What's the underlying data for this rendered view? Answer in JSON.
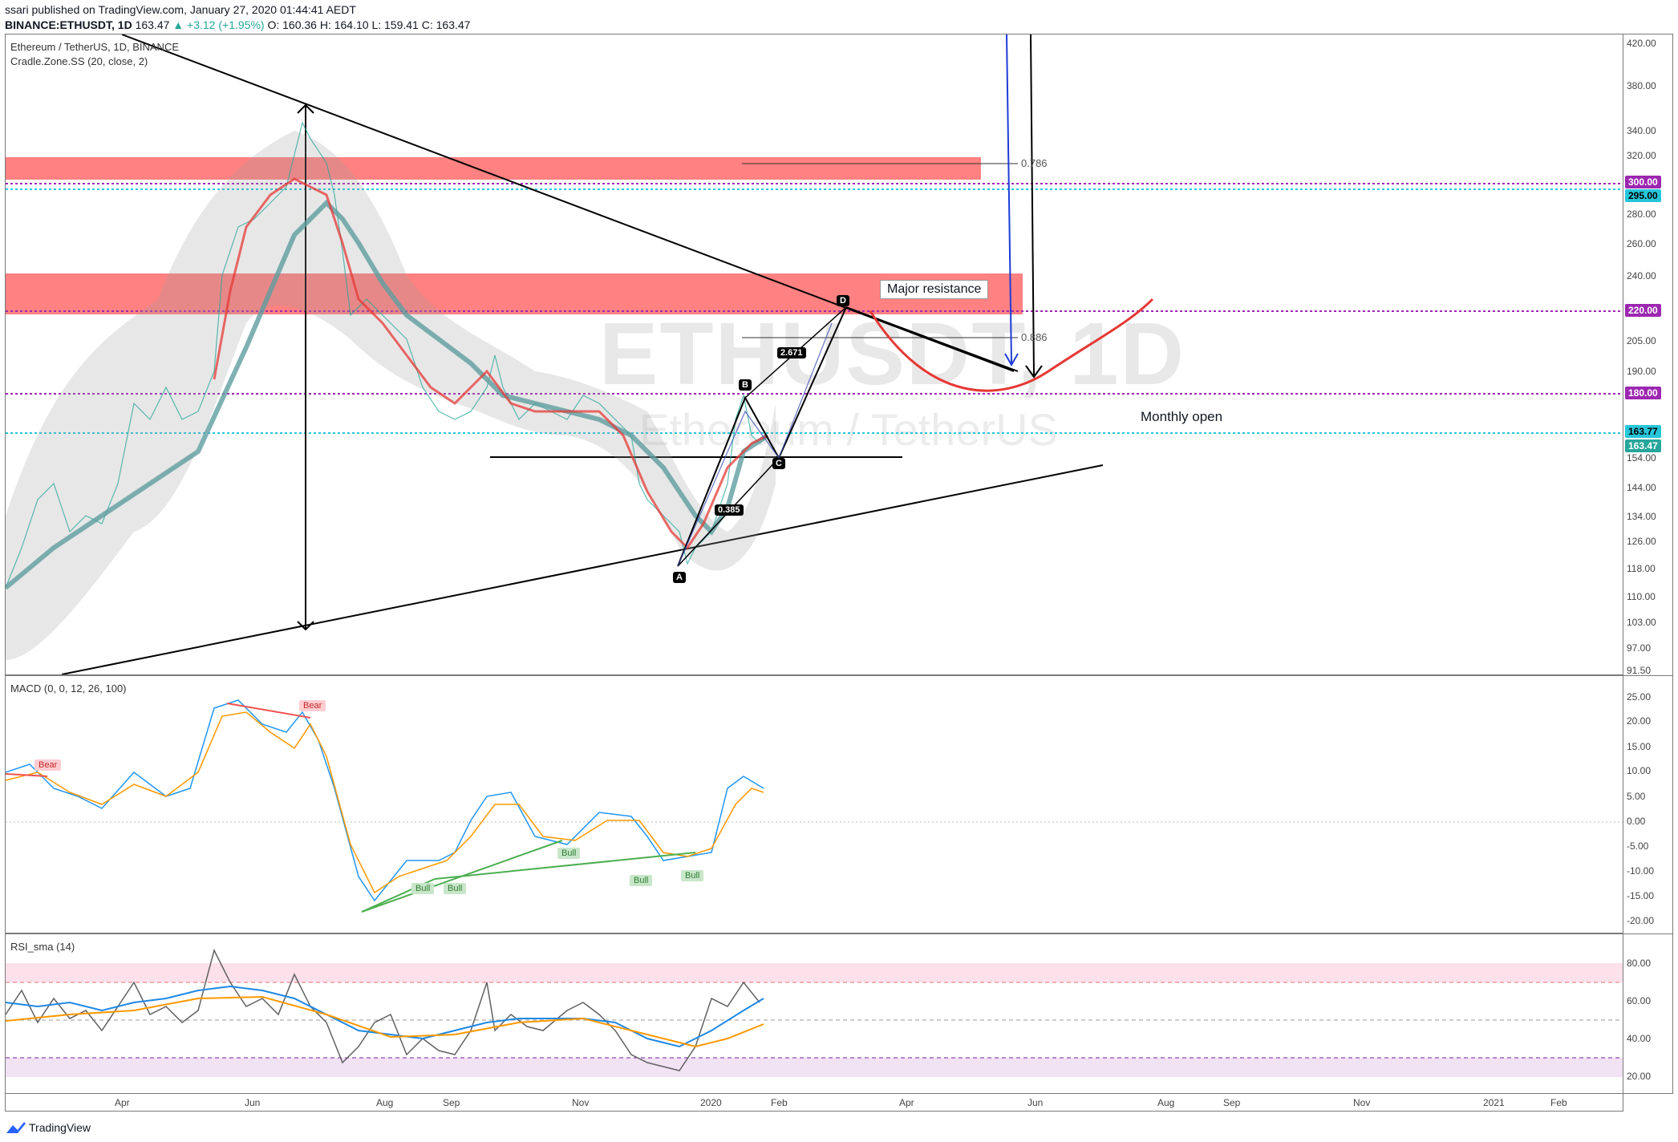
{
  "header": {
    "published": "ssari published on TradingView.com, January 27, 2020 01:44:41 AEDT",
    "symbol": "BINANCE:ETHUSDT, 1D",
    "last": "163.47",
    "change": "▲ +3.12 (+1.95%)",
    "open": "O: 160.36",
    "high": "H: 164.10",
    "low": "L: 159.41",
    "close": "C: 163.47"
  },
  "main_pane": {
    "title": "Ethereum / TetherUS, 1D, BINANCE",
    "study": "Cradle.Zone.SS (20, close, 2)",
    "watermark_symbol": "ETHUSDT, 1D",
    "watermark_name": "Ethereum / TetherUS",
    "price_ticks": [
      "420.00",
      "380.00",
      "340.00",
      "320.00",
      "300.00",
      "280.00",
      "260.00",
      "240.00",
      "220.00",
      "205.00",
      "190.00",
      "180.00",
      "163.77",
      "154.00",
      "144.00",
      "134.00",
      "126.00",
      "118.00",
      "110.00",
      "103.00",
      "97.00",
      "91.50"
    ],
    "fib_786": "0.786",
    "fib_886": "0.886",
    "major_resistance": "Major resistance",
    "monthly_open": "Monthly open",
    "pattern_ratio_1": "2.671",
    "pattern_ratio_2": "0.385",
    "points": {
      "a": "A",
      "b": "B",
      "c": "C",
      "d": "D"
    }
  },
  "price_tags": {
    "p300": "300.00",
    "p295": "295.00",
    "p220": "220.00",
    "p180": "180.00",
    "p16377": "163.77",
    "p16347": "163.47"
  },
  "colors": {
    "resistance_zone": "#ff6b6b",
    "purple_level": "#9c27b0",
    "cyan_level": "#26c6da",
    "bull_green": "#4caf50",
    "bear_red": "#ef5350",
    "projection_red": "#e53935",
    "arrow_blue": "#1e3cd6"
  },
  "macd_pane": {
    "title": "MACD (0, 0, 12, 26, 100)",
    "ticks": [
      "25.00",
      "20.00",
      "15.00",
      "10.00",
      "5.00",
      "0.00",
      "-5.00",
      "-10.00",
      "-15.00",
      "-20.00"
    ],
    "labels": {
      "bear1": "Bear",
      "bear2": "Bear",
      "bull1": "Bull",
      "bull2": "Bull",
      "bull3": "Bull",
      "bull4": "Bull",
      "bull5": "Bull"
    }
  },
  "rsi_pane": {
    "title": "RSI_sma (14)",
    "ticks": [
      "80.00",
      "60.00",
      "40.00",
      "20.00"
    ]
  },
  "time_axis": [
    "Apr",
    "Jun",
    "Aug",
    "Sep",
    "Nov",
    "2020",
    "Feb",
    "Apr",
    "Jun",
    "Aug",
    "Sep",
    "Nov",
    "2021",
    "Feb"
  ],
  "footer": {
    "brand": "TradingView"
  }
}
